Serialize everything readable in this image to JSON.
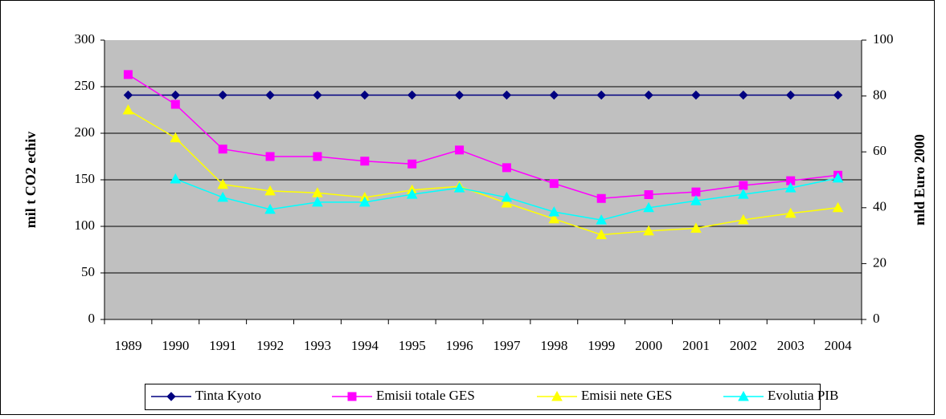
{
  "chart_data": {
    "type": "line",
    "ylabel": "mil t CO2 echiv",
    "y2label": "mld Euro 2000",
    "categories": [
      "1989",
      "1990",
      "1991",
      "1992",
      "1993",
      "1994",
      "1995",
      "1996",
      "1997",
      "1998",
      "1999",
      "2000",
      "2001",
      "2002",
      "2003",
      "2004"
    ],
    "ylim": [
      0,
      300
    ],
    "yticks": [
      0,
      50,
      100,
      150,
      200,
      250,
      300
    ],
    "y2lim": [
      0,
      100
    ],
    "y2ticks": [
      0,
      20,
      40,
      60,
      80,
      100
    ],
    "grid": true,
    "legend": "bottom",
    "series": [
      {
        "name": "Tinta Kyoto",
        "color": "#000080",
        "marker": "diamond",
        "values": [
          241,
          241,
          241,
          241,
          241,
          241,
          241,
          241,
          241,
          241,
          241,
          241,
          241,
          241,
          241,
          241
        ]
      },
      {
        "name": "Emisii totale GES",
        "color": "#ff00ff",
        "marker": "square",
        "values": [
          263,
          231,
          183,
          175,
          175,
          170,
          167,
          182,
          163,
          146,
          130,
          134,
          137,
          144,
          149,
          155
        ]
      },
      {
        "name": "Emisii nete GES",
        "color": "#ffff00",
        "marker": "triangle",
        "values": [
          225,
          195,
          145,
          138,
          136,
          131,
          139,
          143,
          125,
          108,
          91,
          95,
          98,
          107,
          114,
          120
        ]
      },
      {
        "name": "Evolutia PIB",
        "color": "#00ffff",
        "marker": "triangle",
        "axis": "y2",
        "values": [
          null,
          50.3,
          43.7,
          39.4,
          42,
          42,
          44.8,
          47.1,
          43.7,
          38.5,
          35.6,
          40,
          42.5,
          44.8,
          47.1,
          50.6
        ]
      }
    ]
  }
}
